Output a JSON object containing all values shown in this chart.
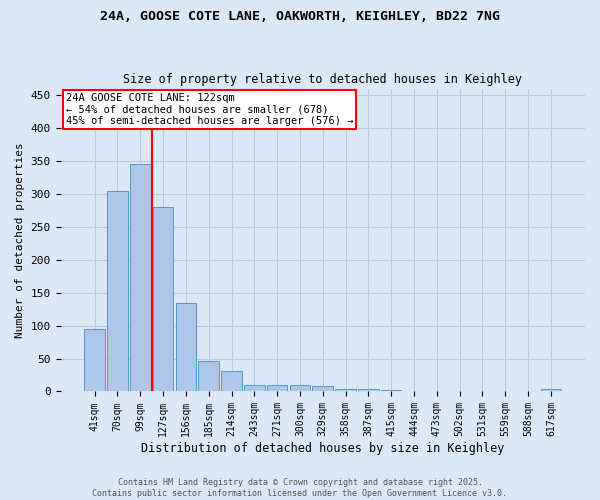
{
  "title1": "24A, GOOSE COTE LANE, OAKWORTH, KEIGHLEY, BD22 7NG",
  "title2": "Size of property relative to detached houses in Keighley",
  "xlabel": "Distribution of detached houses by size in Keighley",
  "ylabel": "Number of detached properties",
  "categories": [
    "41sqm",
    "70sqm",
    "99sqm",
    "127sqm",
    "156sqm",
    "185sqm",
    "214sqm",
    "243sqm",
    "271sqm",
    "300sqm",
    "329sqm",
    "358sqm",
    "387sqm",
    "415sqm",
    "444sqm",
    "473sqm",
    "502sqm",
    "531sqm",
    "559sqm",
    "588sqm",
    "617sqm"
  ],
  "values": [
    95,
    305,
    345,
    280,
    135,
    47,
    31,
    10,
    10,
    10,
    8,
    3,
    4,
    2,
    1,
    1,
    0,
    1,
    0,
    0,
    3
  ],
  "bar_color": "#aec6e8",
  "bar_edge_color": "#5599cc",
  "vline_index": 3,
  "vline_color": "red",
  "annotation_text": "24A GOOSE COTE LANE: 122sqm\n← 54% of detached houses are smaller (678)\n45% of semi-detached houses are larger (576) →",
  "annotation_box_color": "white",
  "annotation_box_edge": "red",
  "ylim": [
    0,
    460
  ],
  "yticks": [
    0,
    50,
    100,
    150,
    200,
    250,
    300,
    350,
    400,
    450
  ],
  "footer": "Contains HM Land Registry data © Crown copyright and database right 2025.\nContains public sector information licensed under the Open Government Licence v3.0.",
  "bg_color": "#dce8f8",
  "grid_color": "#b8cce0"
}
